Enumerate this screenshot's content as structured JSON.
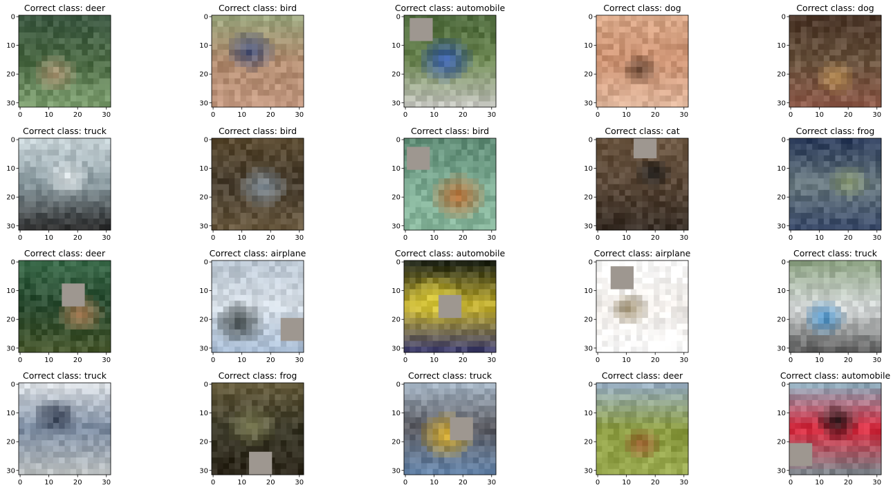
{
  "figure": {
    "title_prefix": "Correct class: ",
    "occluder_color": "#9e9790"
  },
  "chart_data": [
    {
      "type": "image",
      "title": "Correct class: deer",
      "xticks": [
        0,
        10,
        20,
        30
      ],
      "yticks": [
        0,
        10,
        20,
        30
      ],
      "xlim": [
        -0.5,
        31.5
      ],
      "ylim": [
        31.5,
        -0.5
      ],
      "colors": {
        "top": "#3e5a44",
        "mid": "#4c6a45",
        "bottom": "#7fa071",
        "accent": "#b79a7a"
      },
      "occluder": null
    },
    {
      "type": "image",
      "title": "Correct class: bird",
      "xticks": [
        0,
        10,
        20,
        30
      ],
      "yticks": [
        0,
        10,
        20,
        30
      ],
      "xlim": [
        -0.5,
        31.5
      ],
      "ylim": [
        31.5,
        -0.5
      ],
      "colors": {
        "top": "#9aa67e",
        "mid": "#b08a6e",
        "bottom": "#c49a82",
        "accent": "#3a4a7a"
      },
      "occluder": null
    },
    {
      "type": "image",
      "title": "Correct class: automobile",
      "xticks": [
        0,
        10,
        20,
        30
      ],
      "yticks": [
        0,
        10,
        20,
        30
      ],
      "xlim": [
        -0.5,
        31.5
      ],
      "ylim": [
        31.5,
        -0.5
      ],
      "colors": {
        "top": "#4f6b3e",
        "mid": "#6a8450",
        "bottom": "#c9c9c4",
        "accent": "#2f56b8"
      },
      "occluder": [
        2,
        1,
        8,
        8
      ]
    },
    {
      "type": "image",
      "title": "Correct class: dog",
      "xticks": [
        0,
        10,
        20,
        30
      ],
      "yticks": [
        0,
        10,
        20,
        30
      ],
      "xlim": [
        -0.5,
        31.5
      ],
      "ylim": [
        31.5,
        -0.5
      ],
      "colors": {
        "top": "#d9a889",
        "mid": "#c98f6f",
        "bottom": "#e0b79d",
        "accent": "#5a3c2c"
      },
      "occluder": null
    },
    {
      "type": "image",
      "title": "Correct class: dog",
      "xticks": [
        0,
        10,
        20,
        30
      ],
      "yticks": [
        0,
        10,
        20,
        30
      ],
      "xlim": [
        -0.5,
        31.5
      ],
      "ylim": [
        31.5,
        -0.5
      ],
      "colors": {
        "top": "#4a3528",
        "mid": "#6b5540",
        "bottom": "#8e5a4a",
        "accent": "#c79b5e"
      },
      "occluder": null
    },
    {
      "type": "image",
      "title": "Correct class: truck",
      "xticks": [
        0,
        10,
        20,
        30
      ],
      "yticks": [
        0,
        10,
        20,
        30
      ],
      "xlim": [
        -0.5,
        31.5
      ],
      "ylim": [
        31.5,
        -0.5
      ],
      "colors": {
        "top": "#c8d4d8",
        "mid": "#8a9aa0",
        "bottom": "#2a2a2a",
        "accent": "#e8eef0"
      },
      "occluder": null
    },
    {
      "type": "image",
      "title": "Correct class: bird",
      "xticks": [
        0,
        10,
        20,
        30
      ],
      "yticks": [
        0,
        10,
        20,
        30
      ],
      "xlim": [
        -0.5,
        31.5
      ],
      "ylim": [
        31.5,
        -0.5
      ],
      "colors": {
        "top": "#5a4a30",
        "mid": "#4a4032",
        "bottom": "#6a5a40",
        "accent": "#8a9aa8"
      },
      "occluder": null
    },
    {
      "type": "image",
      "title": "Correct class: bird",
      "xticks": [
        0,
        10,
        20,
        30
      ],
      "yticks": [
        0,
        10,
        20,
        30
      ],
      "xlim": [
        -0.5,
        31.5
      ],
      "ylim": [
        31.5,
        -0.5
      ],
      "colors": {
        "top": "#5e8a74",
        "mid": "#7aa890",
        "bottom": "#8ab89e",
        "accent": "#c0682a"
      },
      "occluder": [
        1,
        3,
        8,
        8
      ]
    },
    {
      "type": "image",
      "title": "Correct class: cat",
      "xticks": [
        0,
        10,
        20,
        30
      ],
      "yticks": [
        0,
        10,
        20,
        30
      ],
      "xlim": [
        -0.5,
        31.5
      ],
      "ylim": [
        31.5,
        -0.5
      ],
      "colors": {
        "top": "#6a5540",
        "mid": "#5a4838",
        "bottom": "#3a3028",
        "accent": "#202020"
      },
      "occluder": [
        13,
        0,
        8,
        7
      ]
    },
    {
      "type": "image",
      "title": "Correct class: frog",
      "xticks": [
        0,
        10,
        20,
        30
      ],
      "yticks": [
        0,
        10,
        20,
        30
      ],
      "xlim": [
        -0.5,
        31.5
      ],
      "ylim": [
        31.5,
        -0.5
      ],
      "colors": {
        "top": "#2a3a5a",
        "mid": "#6a7a80",
        "bottom": "#3a4a6a",
        "accent": "#8a9a70"
      },
      "occluder": null
    },
    {
      "type": "image",
      "title": "Correct class: deer",
      "xticks": [
        0,
        10,
        20,
        30
      ],
      "yticks": [
        0,
        10,
        20,
        30
      ],
      "xlim": [
        -0.5,
        31.5
      ],
      "ylim": [
        31.5,
        -0.5
      ],
      "colors": {
        "top": "#3a6a4a",
        "mid": "#2a4a30",
        "bottom": "#4a5a30",
        "accent": "#c08a60"
      },
      "occluder": [
        15,
        8,
        8,
        8
      ]
    },
    {
      "type": "image",
      "title": "Correct class: airplane",
      "xticks": [
        0,
        10,
        20,
        30
      ],
      "yticks": [
        0,
        10,
        20,
        30
      ],
      "xlim": [
        -0.5,
        31.5
      ],
      "ylim": [
        31.5,
        -0.5
      ],
      "colors": {
        "top": "#b8c4d0",
        "mid": "#d4dce4",
        "bottom": "#a8bcd4",
        "accent": "#303838"
      },
      "occluder": [
        24,
        20,
        8,
        8
      ]
    },
    {
      "type": "image",
      "title": "Correct class: automobile",
      "xticks": [
        0,
        10,
        20,
        30
      ],
      "yticks": [
        0,
        10,
        20,
        30
      ],
      "xlim": [
        -0.5,
        31.5
      ],
      "ylim": [
        31.5,
        -0.5
      ],
      "colors": {
        "top": "#1a2018",
        "mid": "#c8b430",
        "bottom": "#3a3a70",
        "accent": "#e0d040"
      },
      "occluder": [
        12,
        12,
        8,
        8
      ]
    },
    {
      "type": "image",
      "title": "Correct class: airplane",
      "xticks": [
        0,
        10,
        20,
        30
      ],
      "yticks": [
        0,
        10,
        20,
        30
      ],
      "xlim": [
        -0.5,
        31.5
      ],
      "ylim": [
        31.5,
        -0.5
      ],
      "colors": {
        "top": "#ffffff",
        "mid": "#f0ece8",
        "bottom": "#ffffff",
        "accent": "#8a7a58"
      },
      "occluder": [
        5,
        2,
        8,
        8
      ]
    },
    {
      "type": "image",
      "title": "Correct class: truck",
      "xticks": [
        0,
        10,
        20,
        30
      ],
      "yticks": [
        0,
        10,
        20,
        30
      ],
      "xlim": [
        -0.5,
        31.5
      ],
      "ylim": [
        31.5,
        -0.5
      ],
      "colors": {
        "top": "#8aa080",
        "mid": "#d8dcdc",
        "bottom": "#5a5a5a",
        "accent": "#3a8ac8"
      },
      "occluder": null
    },
    {
      "type": "image",
      "title": "Correct class: truck",
      "xticks": [
        0,
        10,
        20,
        30
      ],
      "yticks": [
        0,
        10,
        20,
        30
      ],
      "xlim": [
        -0.5,
        31.5
      ],
      "ylim": [
        31.5,
        -0.5
      ],
      "colors": {
        "top": "#e0e4e8",
        "mid": "#7a8aa0",
        "bottom": "#c0c4c4",
        "accent": "#2a3448"
      },
      "occluder": null
    },
    {
      "type": "image",
      "title": "Correct class: frog",
      "xticks": [
        0,
        10,
        20,
        30
      ],
      "yticks": [
        0,
        10,
        20,
        30
      ],
      "xlim": [
        -0.5,
        31.5
      ],
      "ylim": [
        31.5,
        -0.5
      ],
      "colors": {
        "top": "#6a6040",
        "mid": "#3a3828",
        "bottom": "#2a2418",
        "accent": "#8a8a60"
      },
      "occluder": [
        13,
        24,
        8,
        8
      ]
    },
    {
      "type": "image",
      "title": "Correct class: truck",
      "xticks": [
        0,
        10,
        20,
        30
      ],
      "yticks": [
        0,
        10,
        20,
        30
      ],
      "xlim": [
        -0.5,
        31.5
      ],
      "ylim": [
        31.5,
        -0.5
      ],
      "colors": {
        "top": "#a8b8c8",
        "mid": "#5a5a60",
        "bottom": "#6a8ab0",
        "accent": "#e0b020"
      },
      "occluder": [
        16,
        12,
        8,
        8
      ]
    },
    {
      "type": "image",
      "title": "Correct class: deer",
      "xticks": [
        0,
        10,
        20,
        30
      ],
      "yticks": [
        0,
        10,
        20,
        30
      ],
      "xlim": [
        -0.5,
        31.5
      ],
      "ylim": [
        31.5,
        -0.5
      ],
      "colors": {
        "top": "#9ab0c8",
        "mid": "#8a9a40",
        "bottom": "#9aaa50",
        "accent": "#a05a30"
      },
      "occluder": null
    },
    {
      "type": "image",
      "title": "Correct class: automobile",
      "xticks": [
        0,
        10,
        20,
        30
      ],
      "yticks": [
        0,
        10,
        20,
        30
      ],
      "xlim": [
        -0.5,
        31.5
      ],
      "ylim": [
        31.5,
        -0.5
      ],
      "colors": {
        "top": "#8ab0c0",
        "mid": "#d8283c",
        "bottom": "#7a8a90",
        "accent": "#1a1a1a"
      },
      "occluder": [
        0,
        21,
        8,
        8
      ]
    }
  ]
}
